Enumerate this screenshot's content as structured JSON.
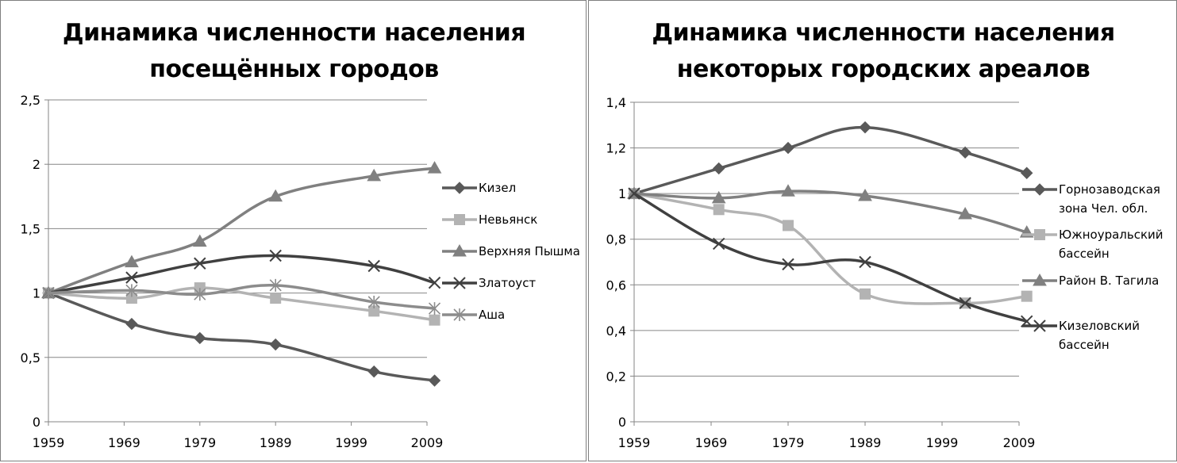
{
  "chart_data": [
    {
      "type": "line",
      "title_lines": [
        "Динамика численности населения",
        "посещённых городов"
      ],
      "x": [
        1959,
        1970,
        1979,
        1989,
        2002,
        2010
      ],
      "xticks": [
        "1959",
        "1969",
        "1979",
        "1989",
        "1999",
        "2009"
      ],
      "xtick_values": [
        1959,
        1969,
        1979,
        1989,
        1999,
        2009
      ],
      "xlim": [
        1959,
        2009
      ],
      "yticks": [
        "0",
        "0,5",
        "1",
        "1,5",
        "2",
        "2,5"
      ],
      "ylim": [
        0,
        2.5
      ],
      "grid": "horizontal",
      "legend_position": "right",
      "series": [
        {
          "name": "Кизел",
          "marker": "diamond",
          "color": "#595959",
          "values": [
            1.0,
            0.76,
            0.65,
            0.6,
            0.39,
            0.32
          ]
        },
        {
          "name": "Невьянск",
          "marker": "square",
          "color": "#b3b3b3",
          "values": [
            1.0,
            0.96,
            1.04,
            0.96,
            0.86,
            0.79
          ]
        },
        {
          "name": "Верхняя Пышма",
          "marker": "triangle",
          "color": "#808080",
          "values": [
            1.0,
            1.24,
            1.4,
            1.75,
            1.91,
            1.97
          ]
        },
        {
          "name": "Златоуст",
          "marker": "x",
          "color": "#404040",
          "values": [
            1.0,
            1.12,
            1.23,
            1.29,
            1.21,
            1.08
          ]
        },
        {
          "name": "Аша",
          "marker": "star",
          "color": "#8c8c8c",
          "values": [
            1.0,
            1.02,
            0.99,
            1.06,
            0.93,
            0.88
          ]
        }
      ]
    },
    {
      "type": "line",
      "title_lines": [
        "Динамика численности населения",
        "некоторых городских ареалов"
      ],
      "x": [
        1959,
        1970,
        1979,
        1989,
        2002,
        2010
      ],
      "xticks": [
        "1959",
        "1969",
        "1979",
        "1989",
        "1999",
        "2009"
      ],
      "xtick_values": [
        1959,
        1969,
        1979,
        1989,
        1999,
        2009
      ],
      "xlim": [
        1959,
        2009
      ],
      "yticks": [
        "0",
        "0,2",
        "0,4",
        "0,6",
        "0,8",
        "1",
        "1,2",
        "1,4"
      ],
      "ylim": [
        0,
        1.4
      ],
      "grid": "horizontal",
      "legend_position": "right",
      "series": [
        {
          "name": "Горнозаводская зона Чел. обл.",
          "name_lines": [
            "Горнозаводская",
            "зона Чел. обл."
          ],
          "marker": "diamond",
          "color": "#595959",
          "values": [
            1.0,
            1.11,
            1.2,
            1.29,
            1.18,
            1.09
          ]
        },
        {
          "name": "Южноуральский бассейн",
          "name_lines": [
            "Южноуральский",
            "бассейн"
          ],
          "marker": "square",
          "color": "#b3b3b3",
          "values": [
            1.0,
            0.93,
            0.86,
            0.56,
            0.52,
            0.55
          ]
        },
        {
          "name": "Район В. Тагила",
          "name_lines": [
            "Район В. Тагила"
          ],
          "marker": "triangle",
          "color": "#808080",
          "values": [
            1.0,
            0.98,
            1.01,
            0.99,
            0.91,
            0.83
          ]
        },
        {
          "name": "Кизеловский бассейн",
          "name_lines": [
            "Кизеловский",
            "бассейн"
          ],
          "marker": "x",
          "color": "#404040",
          "values": [
            1.0,
            0.78,
            0.69,
            0.7,
            0.52,
            0.44
          ]
        }
      ]
    }
  ]
}
